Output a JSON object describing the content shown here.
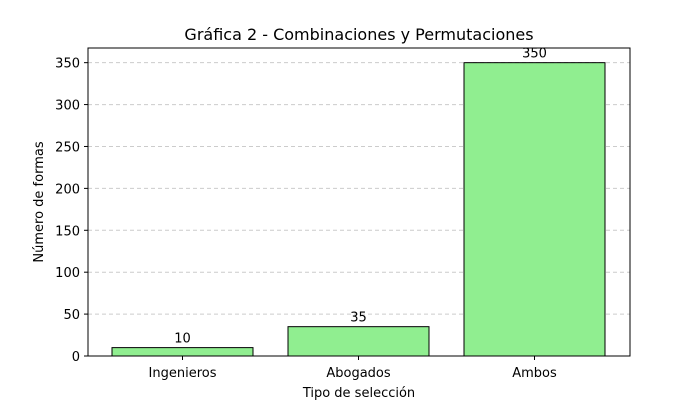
{
  "colors": {
    "bar_fill": "#90ee90",
    "bar_stroke": "#000000",
    "grid": "#cccccc",
    "axis": "#000000",
    "background": "#ffffff"
  },
  "chart_data": {
    "type": "bar",
    "title": "Gráfica 2 - Combinaciones y Permutaciones",
    "xlabel": "Tipo de selección",
    "ylabel": "Número de formas",
    "categories": [
      "Ingenieros",
      "Abogados",
      "Ambos"
    ],
    "values": [
      10,
      35,
      350
    ],
    "value_labels": [
      "10",
      "35",
      "350"
    ],
    "ylim": [
      0,
      367.5
    ],
    "yticks": [
      0,
      50,
      100,
      150,
      200,
      250,
      300,
      350
    ],
    "ytick_labels": [
      "0",
      "50",
      "100",
      "150",
      "200",
      "250",
      "300",
      "350"
    ],
    "grid": "y-axis, dashed",
    "legend": "none"
  }
}
